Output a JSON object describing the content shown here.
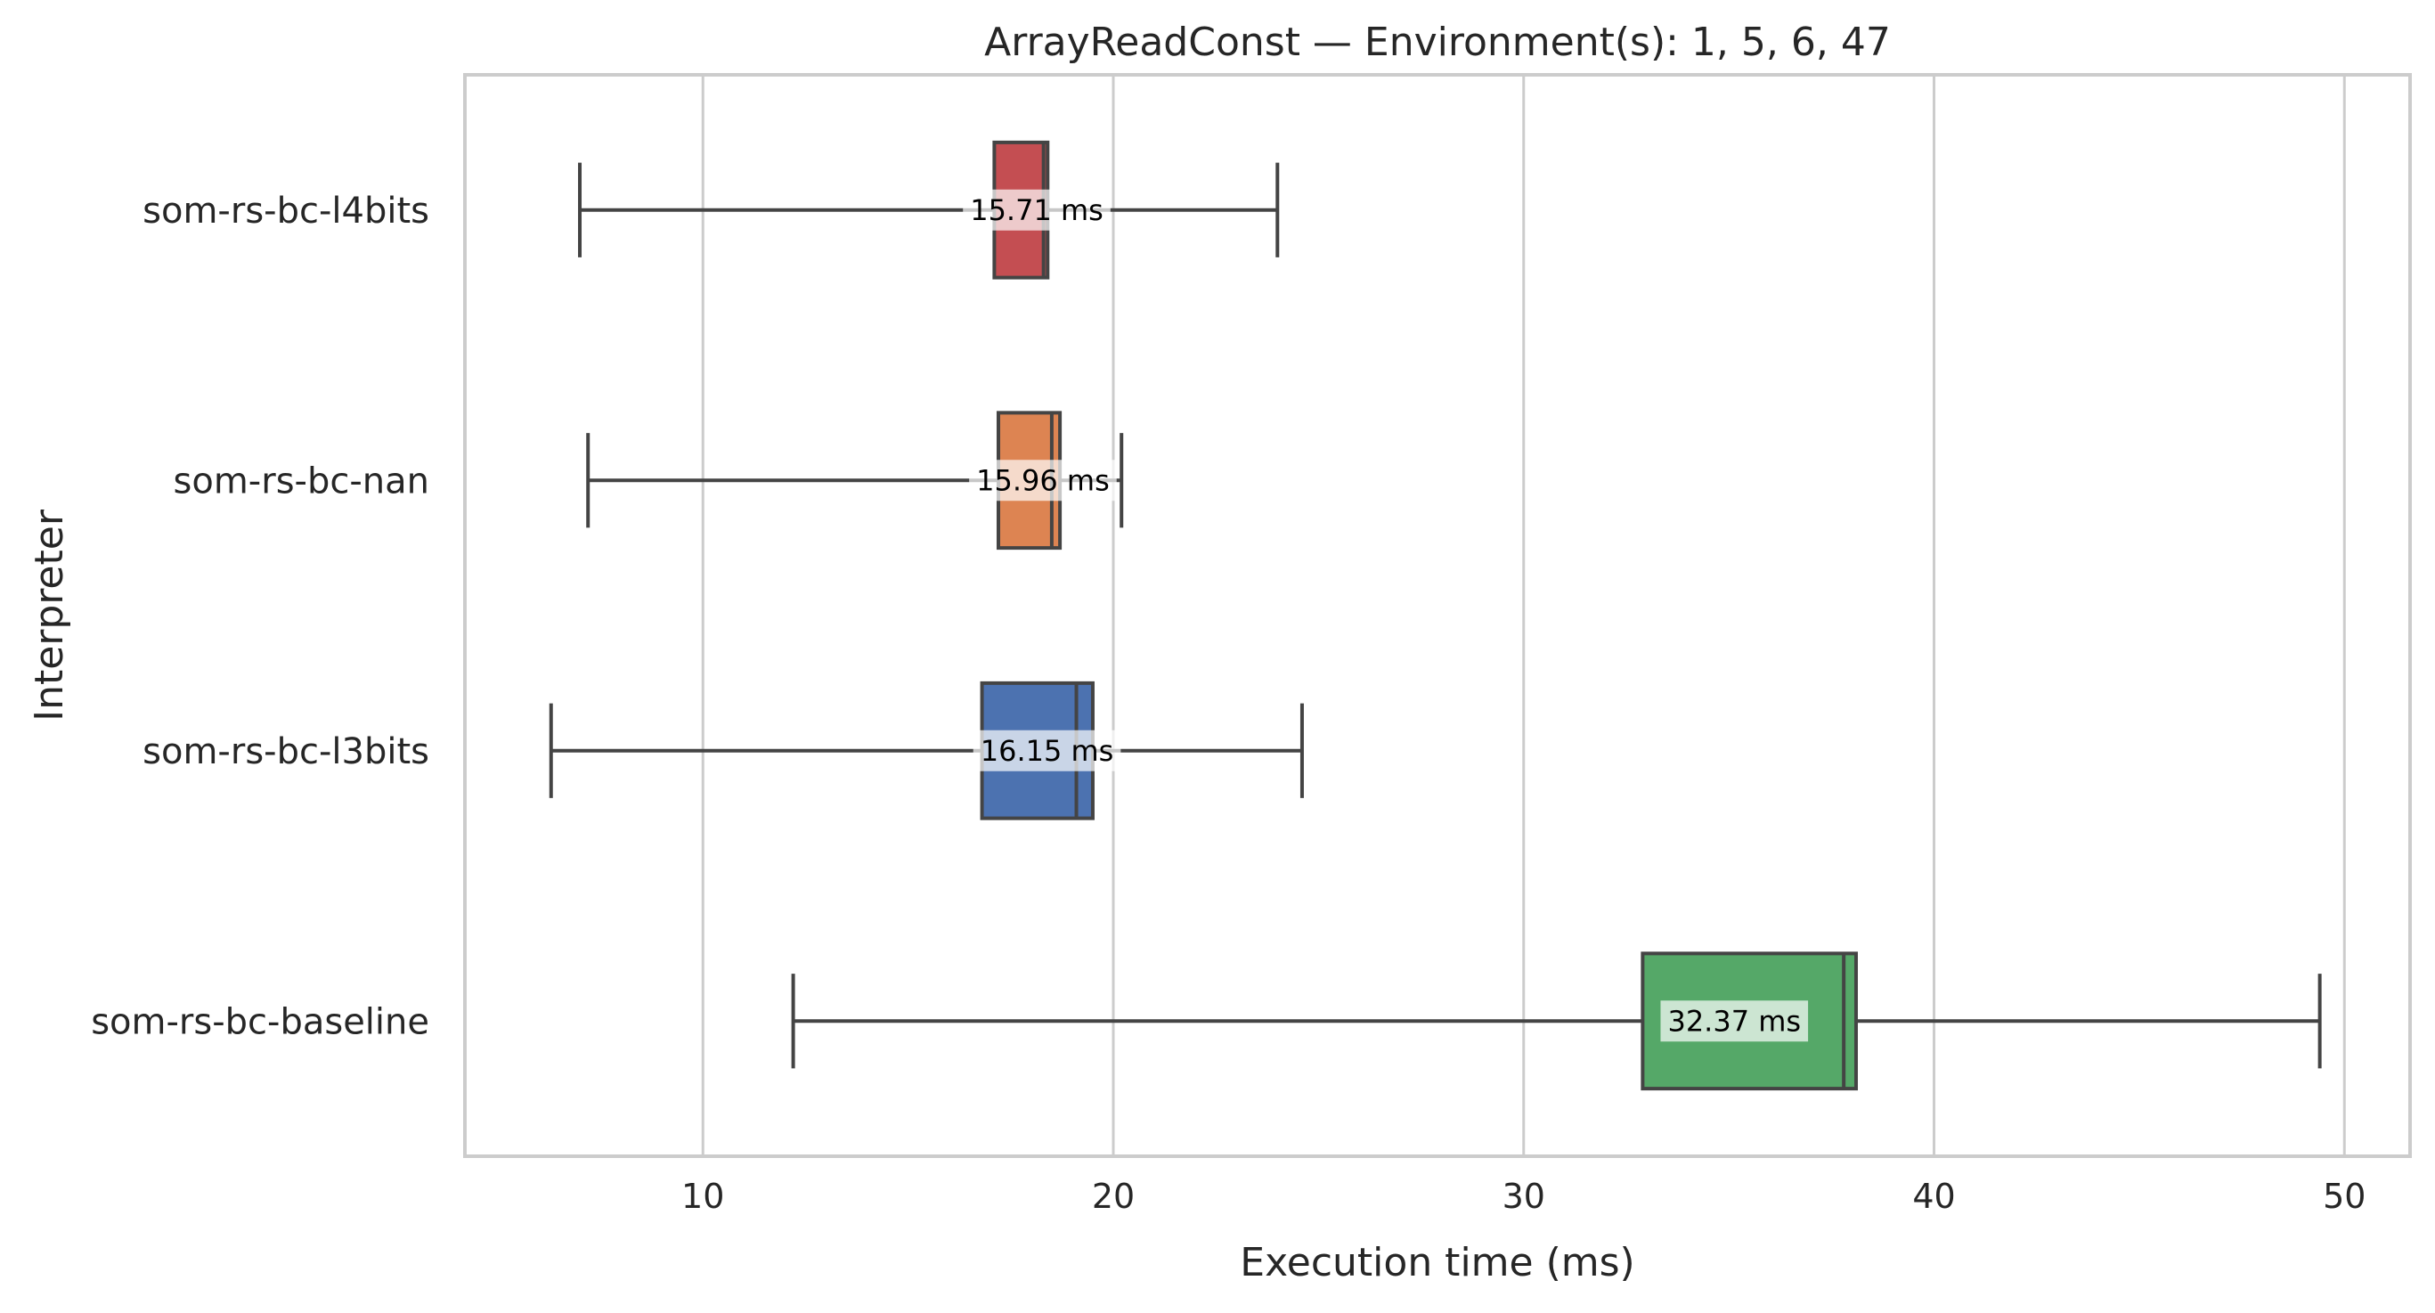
{
  "chart_data": {
    "type": "boxplot",
    "orientation": "horizontal",
    "title": "ArrayReadConst — Environment(s): 1, 5, 6, 47",
    "xlabel": "Execution time (ms)",
    "ylabel": "Interpreter",
    "xlim": [
      4.2,
      51.6
    ],
    "xticks": [
      10,
      20,
      30,
      40,
      50
    ],
    "grid": "vertical",
    "categories": [
      "som-rs-bc-l4bits",
      "som-rs-bc-nan",
      "som-rs-bc-l3bits",
      "som-rs-bc-baseline"
    ],
    "series": [
      {
        "category": "som-rs-bc-l4bits",
        "color": "#c44e52",
        "whisker_low": 7.0,
        "q1": 17.1,
        "median": 18.3,
        "q3": 18.4,
        "whisker_high": 24.0,
        "mean_label": "15.71 ms"
      },
      {
        "category": "som-rs-bc-nan",
        "color": "#dd8452",
        "whisker_low": 7.2,
        "q1": 17.2,
        "median": 18.5,
        "q3": 18.7,
        "whisker_high": 20.2,
        "mean_label": "15.96 ms"
      },
      {
        "category": "som-rs-bc-l3bits",
        "color": "#4c72b0",
        "whisker_low": 6.3,
        "q1": 16.8,
        "median": 19.1,
        "q3": 19.5,
        "whisker_high": 24.6,
        "mean_label": "16.15 ms"
      },
      {
        "category": "som-rs-bc-baseline",
        "color": "#55a868",
        "whisker_low": 12.2,
        "q1": 32.9,
        "median": 37.8,
        "q3": 38.1,
        "whisker_high": 49.4,
        "mean_label": "32.37 ms"
      }
    ]
  }
}
